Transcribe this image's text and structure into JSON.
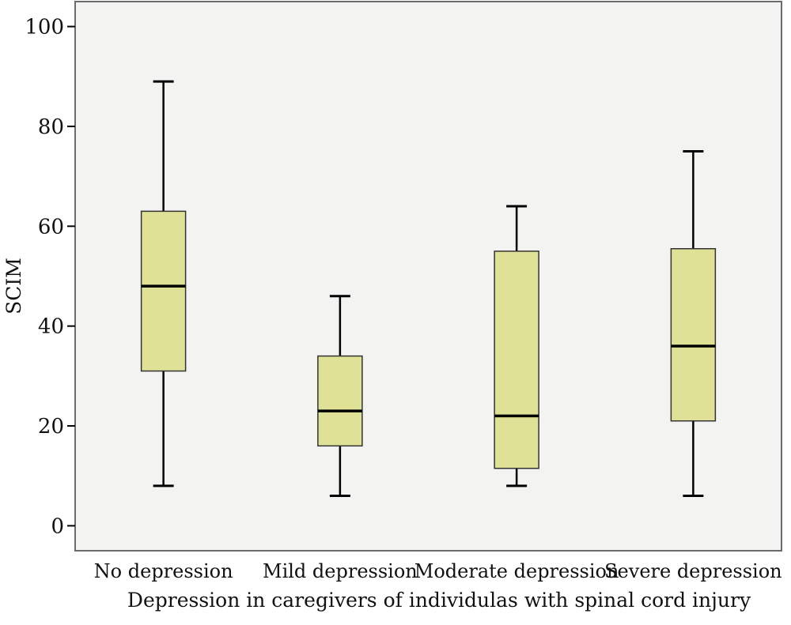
{
  "chart_data": {
    "type": "boxplot",
    "title": "",
    "xlabel": "Depression in caregivers of individulas with spinal cord injury",
    "ylabel": "SCIM",
    "ylim": [
      -5,
      105
    ],
    "yticks": [
      0,
      20,
      40,
      60,
      80,
      100
    ],
    "grid": false,
    "categories": [
      "No depression",
      "Mild depression",
      "Moderate depression",
      "Severe depression"
    ],
    "boxes": [
      {
        "min": 8,
        "q1": 31,
        "median": 48,
        "q3": 63,
        "max": 89
      },
      {
        "min": 6,
        "q1": 16,
        "median": 23,
        "q3": 34,
        "max": 46
      },
      {
        "min": 8,
        "q1": 11.5,
        "median": 22,
        "q3": 55,
        "max": 64
      },
      {
        "min": 6,
        "q1": 21,
        "median": 36,
        "q3": 55.5,
        "max": 75
      }
    ],
    "colors": {
      "box_fill": "#dfe296",
      "stroke": "#000000",
      "plot_bg": "#f3f4f2",
      "frame": "#6b6b6b"
    }
  }
}
